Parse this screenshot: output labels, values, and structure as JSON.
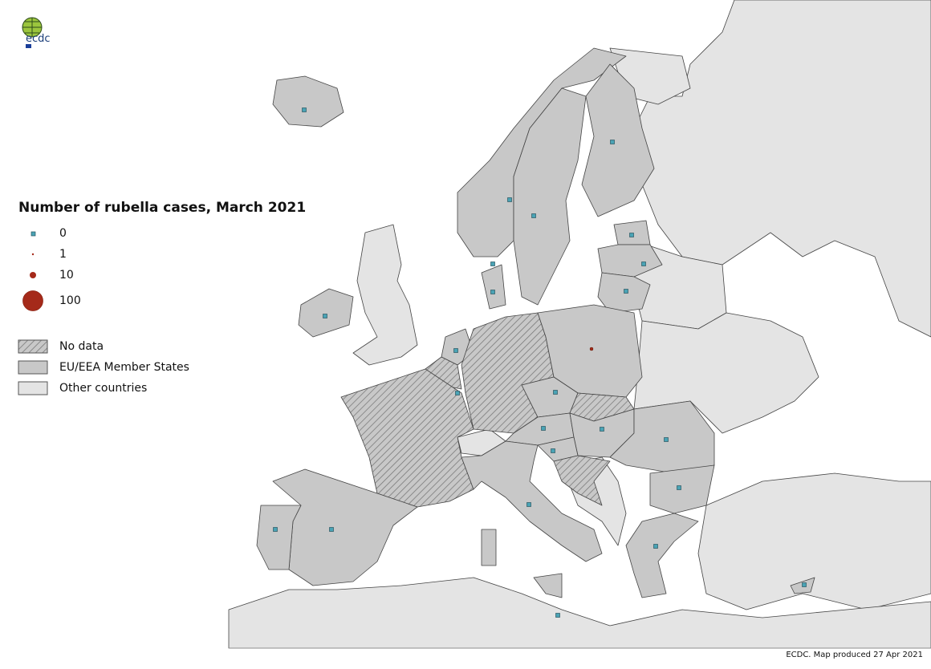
{
  "logo": {
    "text": "ecdc"
  },
  "legend": {
    "title": "Number of rubella cases, March 2021",
    "sizes": [
      {
        "label": "0"
      },
      {
        "label": "1"
      },
      {
        "label": "10"
      },
      {
        "label": "100"
      }
    ],
    "categories": [
      {
        "label": "No data",
        "pattern": "hatched"
      },
      {
        "label": "EU/EEA Member States",
        "color": "#c8c8c8"
      },
      {
        "label": "Other countries",
        "color": "#e4e4e4"
      }
    ]
  },
  "colors": {
    "eu": "#c8c8c8",
    "other": "#e4e4e4",
    "sea": "#ffffff",
    "zero_marker": "#4aa3b5",
    "case_marker": "#a52a1a"
  },
  "markers": [
    0,
    0,
    0,
    0,
    0,
    0,
    0,
    0,
    0,
    0,
    0,
    1,
    0,
    0,
    0,
    0,
    0,
    0,
    0,
    0,
    0,
    0,
    0,
    0,
    0
  ],
  "footer": "ECDC. Map produced 27 Apr 2021"
}
